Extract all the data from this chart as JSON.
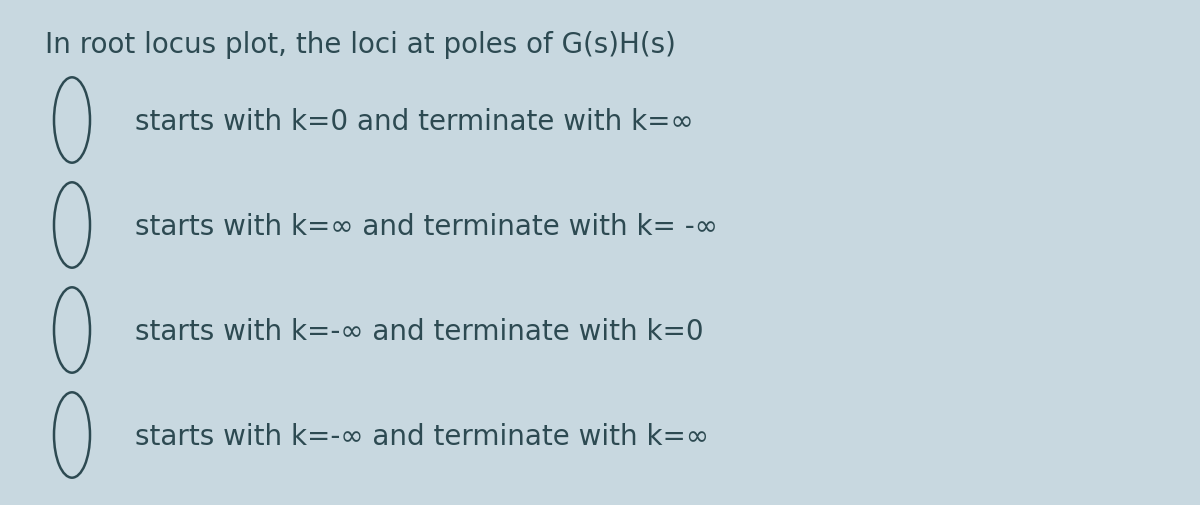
{
  "background_color": "#c8d8e0",
  "title": "In root locus plot, the loci at poles of G(s)H(s)",
  "title_fontsize": 20,
  "title_color": "#2d4a52",
  "options": [
    "starts with k=0 and terminate with k=∞",
    "starts with k=∞ and terminate with k= -∞",
    "starts with k=-∞ and terminate with k=0",
    "starts with k=-∞ and terminate with k=∞"
  ],
  "option_fontsize": 20,
  "option_color": "#2d4a52",
  "circle_color": "#2d4a52",
  "circle_linewidth": 1.8,
  "fig_width": 12.0,
  "fig_height": 5.06,
  "dpi": 100
}
